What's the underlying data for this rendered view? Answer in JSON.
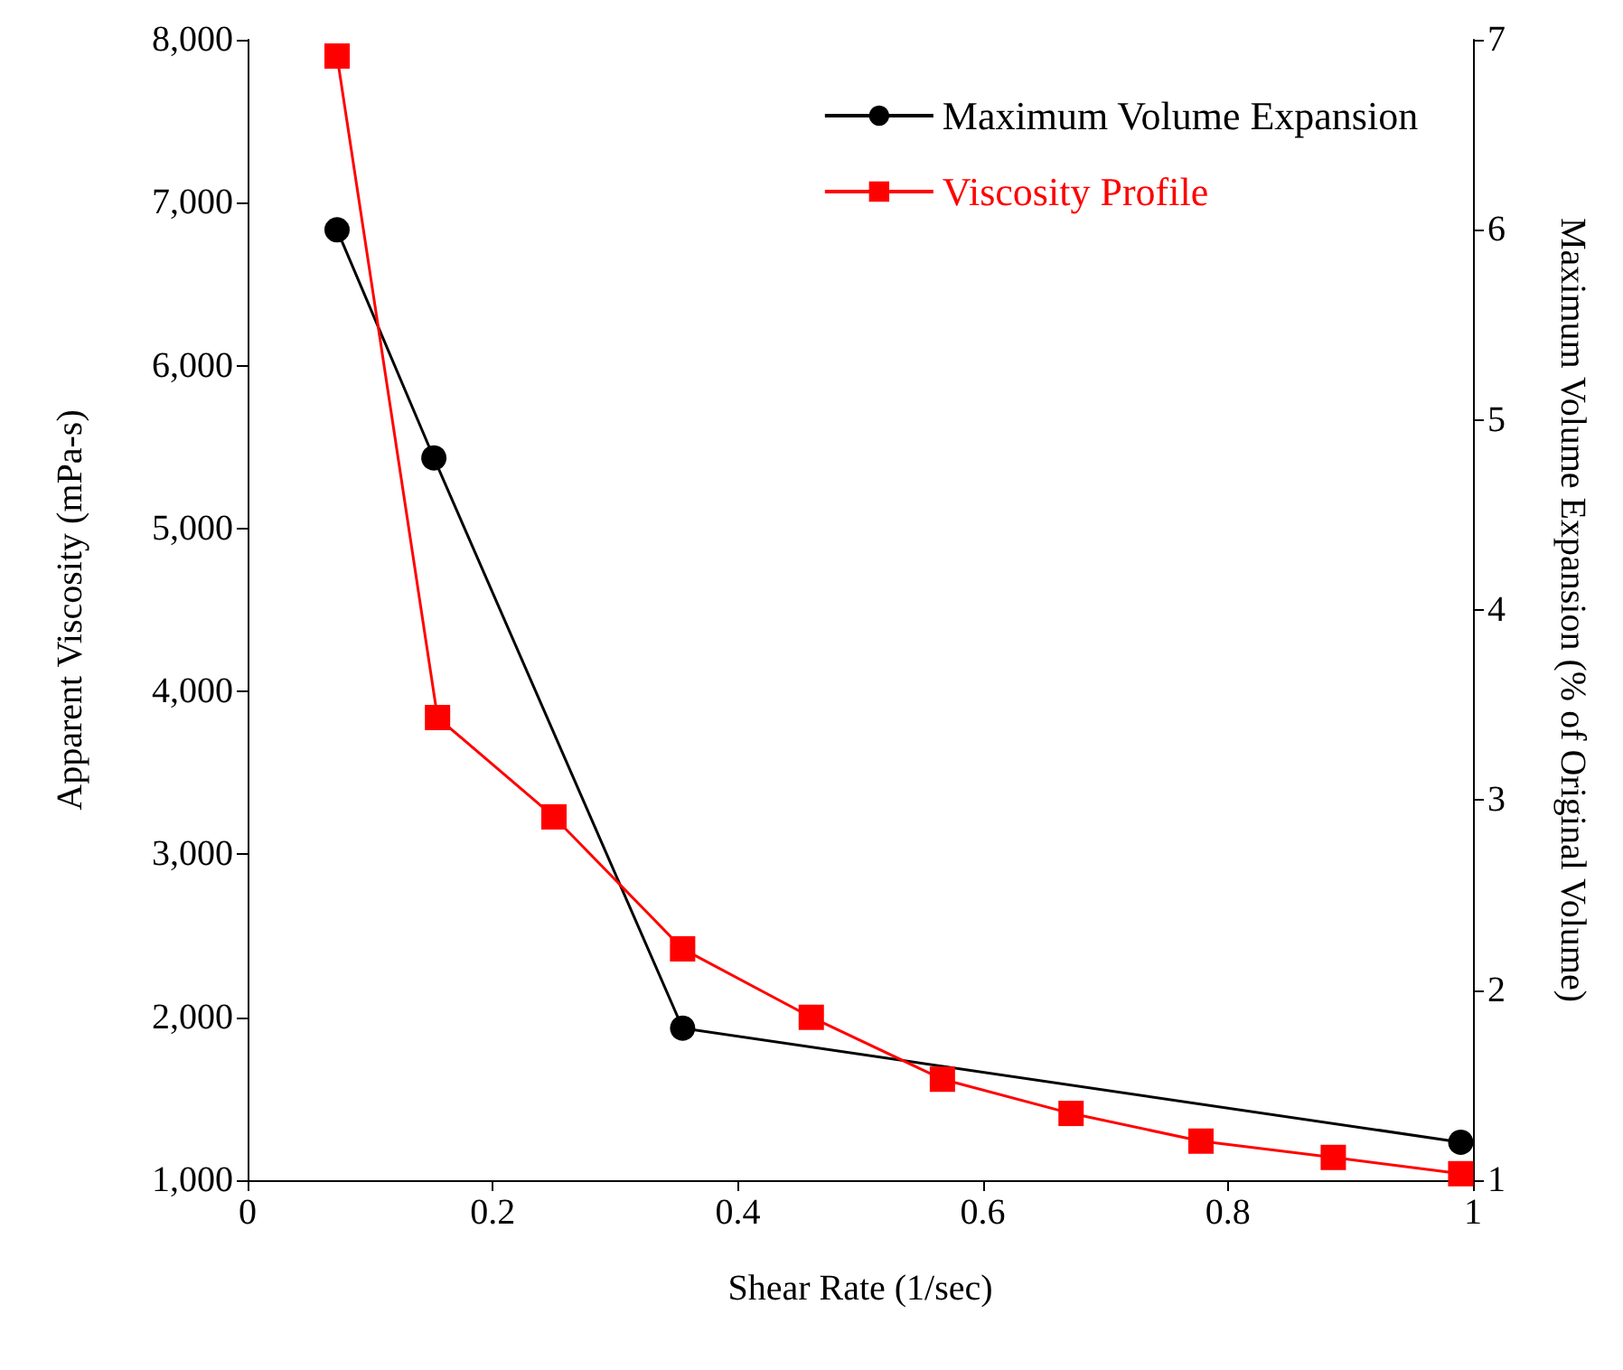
{
  "chart_data": {
    "type": "line",
    "xlabel": "Shear Rate (1/sec)",
    "ylabel": "Apparent Viscosity (mPa-s)",
    "y2label": "Maximum Volume Expansion (% of Original Volume)",
    "xlim": [
      0,
      1
    ],
    "xticks": [
      0,
      0.2,
      0.4,
      0.6,
      0.8,
      1
    ],
    "ylim": [
      1000,
      8000
    ],
    "yticks": [
      {
        "value": 1000,
        "label": "1,000"
      },
      {
        "value": 2000,
        "label": "2,000"
      },
      {
        "value": 3000,
        "label": "3,000"
      },
      {
        "value": 4000,
        "label": "4,000"
      },
      {
        "value": 5000,
        "label": "5,000"
      },
      {
        "value": 6000,
        "label": "6,000"
      },
      {
        "value": 7000,
        "label": "7,000"
      },
      {
        "value": 8000,
        "label": "8,000"
      }
    ],
    "y2lim": [
      1,
      7
    ],
    "y2ticks": [
      1,
      2,
      3,
      4,
      5,
      6,
      7
    ],
    "grid": false,
    "legend": "top right",
    "line_style": "solid",
    "series": [
      {
        "name": "Maximum Volume Expansion",
        "color": "#000000",
        "axis": "y2",
        "marker": "circle",
        "x": [
          0.073,
          0.152,
          0.355,
          0.99
        ],
        "values": [
          6.0,
          4.8,
          1.8,
          1.2
        ]
      },
      {
        "name": "Viscosity Profile",
        "color": "#ff0000",
        "marker": "square",
        "x": [
          0.073,
          0.155,
          0.25,
          0.355,
          0.46,
          0.567,
          0.672,
          0.778,
          0.886,
          0.99
        ],
        "values": [
          7900,
          3840,
          3230,
          2420,
          2000,
          1620,
          1410,
          1240,
          1140,
          1040
        ]
      }
    ]
  }
}
